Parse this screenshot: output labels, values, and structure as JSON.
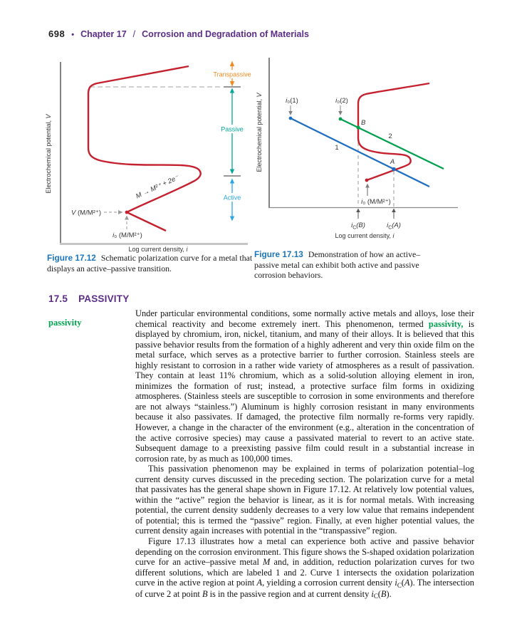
{
  "header": {
    "page_number": "698",
    "bullet": "•",
    "chapter": "Chapter 17",
    "slash": "/",
    "chapter_title": "Corrosion and Degradation of Materials"
  },
  "section": {
    "number": "17.5",
    "title": "PASSIVITY",
    "margin_term": "passivity"
  },
  "fig12": {
    "y_axis_label": "Electrochemical potential, ",
    "y_axis_var": "V",
    "x_axis_label": "Log current density, ",
    "x_axis_var": "i",
    "region_transpassive": "Transpassive",
    "region_passive": "Passive",
    "region_active": "Active",
    "reaction_label": "M → M²⁺ + 2e⁻",
    "v_label_pre": "V",
    "v_label_post": " (M/M²⁺)",
    "i0_label_pre": "i",
    "i0_label_post": "₀ (M/M²⁺)",
    "caption_label": "Figure 17.12",
    "caption_text": "Schematic polarization curve for a metal that displays an active–passive transition."
  },
  "fig13": {
    "y_axis_label": "Electrochemical potential, ",
    "y_axis_var": "V",
    "x_axis_label": "Log current density, ",
    "x_axis_var": "i",
    "i0_1_pre": "i",
    "i0_1_post": "₀(1)",
    "i0_2_pre": "i",
    "i0_2_post": "₀(2)",
    "curve_1": "1",
    "curve_2": "2",
    "point_a": "A",
    "point_b": "B",
    "i0_m_pre": "i",
    "i0_m_post": "₀ (M/M²⁺)",
    "ic_b_i": "i",
    "ic_b_sub": "C",
    "ic_b_rest": "(B)",
    "ic_a_i": "i",
    "ic_a_sub": "C",
    "ic_a_rest": "(A)",
    "caption_label": "Figure 17.13",
    "caption_text": "Demonstration of how an active–passive metal can exhibit both active and passive corrosion behaviors."
  },
  "colors": {
    "purple_heading": "#5c2d87",
    "caption_blue": "#1b75bb",
    "term_green": "#00a14e",
    "curve_red": "#c5202e",
    "line_blue": "#1e6fc0",
    "line_green": "#00a04e",
    "passive_teal": "#00a79b",
    "transpassive_orange": "#f18a21",
    "active_lightblue": "#2ba7df"
  },
  "body": {
    "paragraphs": [
      {
        "indent": false,
        "segments": [
          {
            "t": "Under particular environmental conditions, some normally active metals and alloys, lose their chemical reactivity and become extremely inert. This phenomenon, termed "
          },
          {
            "t": "passivity,",
            "s": "term"
          },
          {
            "t": " is displayed by chromium, iron, nickel, titanium, and many of their alloys. It is believed that this passive behavior results from the formation of a highly adherent and very thin oxide film on the metal surface, which serves as a protective barrier to further corrosion. Stainless steels are highly resistant to corrosion in a rather wide variety of atmospheres as a result of passivation. They contain at least 11% chromium, which as a solid-solution alloying element in iron, minimizes the formation of rust; instead, a protective surface film forms in oxidizing atmospheres. (Stainless steels are susceptible to corrosion in some environments and therefore are not always “stainless.”) Aluminum is highly corrosion resistant in many environments because it also passivates. If damaged, the protective film normally re-forms very rapidly. However, a change in the character of the environment (e.g., alteration in the concentration of the active corrosive species) may cause a passivated material to revert to an active state. Subsequent damage to a preexisting passive film could result in a substantial increase in corrosion rate, by as much as 100,000 times."
          }
        ]
      },
      {
        "indent": true,
        "segments": [
          {
            "t": "This passivation phenomenon may be explained in terms of polarization potential–log current density curves discussed in the preceding section. The polarization curve for a metal that passivates has the general shape shown in Figure 17.12. At relatively low potential values, within the “active” region the behavior is linear, as it is for normal metals. With increasing potential, the current density suddenly decreases to a very low value that remains independent of potential; this is termed the “passive” region. Finally, at even higher potential values, the current density again increases with potential in the “transpassive” region."
          }
        ]
      },
      {
        "indent": true,
        "segments": [
          {
            "t": "Figure 17.13 illustrates how a metal can experience both active and passive behavior depending on the corrosion environment. This figure shows the S-shaped oxidation polarization curve for an active–passive metal "
          },
          {
            "t": "M",
            "s": "i"
          },
          {
            "t": " and, in addition, reduction polarization curves for two different solutions, which are labeled 1 and 2. Curve 1 intersects the oxidation polarization curve in the active region at point "
          },
          {
            "t": "A",
            "s": "i"
          },
          {
            "t": ", yielding a corrosion current density "
          },
          {
            "t": "i",
            "s": "i"
          },
          {
            "t": "C",
            "s": "sub"
          },
          {
            "t": "("
          },
          {
            "t": "A",
            "s": "i"
          },
          {
            "t": "). The intersection of curve 2 at point "
          },
          {
            "t": "B",
            "s": "i"
          },
          {
            "t": " is in the passive region and at current density "
          },
          {
            "t": "i",
            "s": "i"
          },
          {
            "t": "C",
            "s": "sub"
          },
          {
            "t": "("
          },
          {
            "t": "B",
            "s": "i"
          },
          {
            "t": ")."
          }
        ]
      }
    ]
  }
}
